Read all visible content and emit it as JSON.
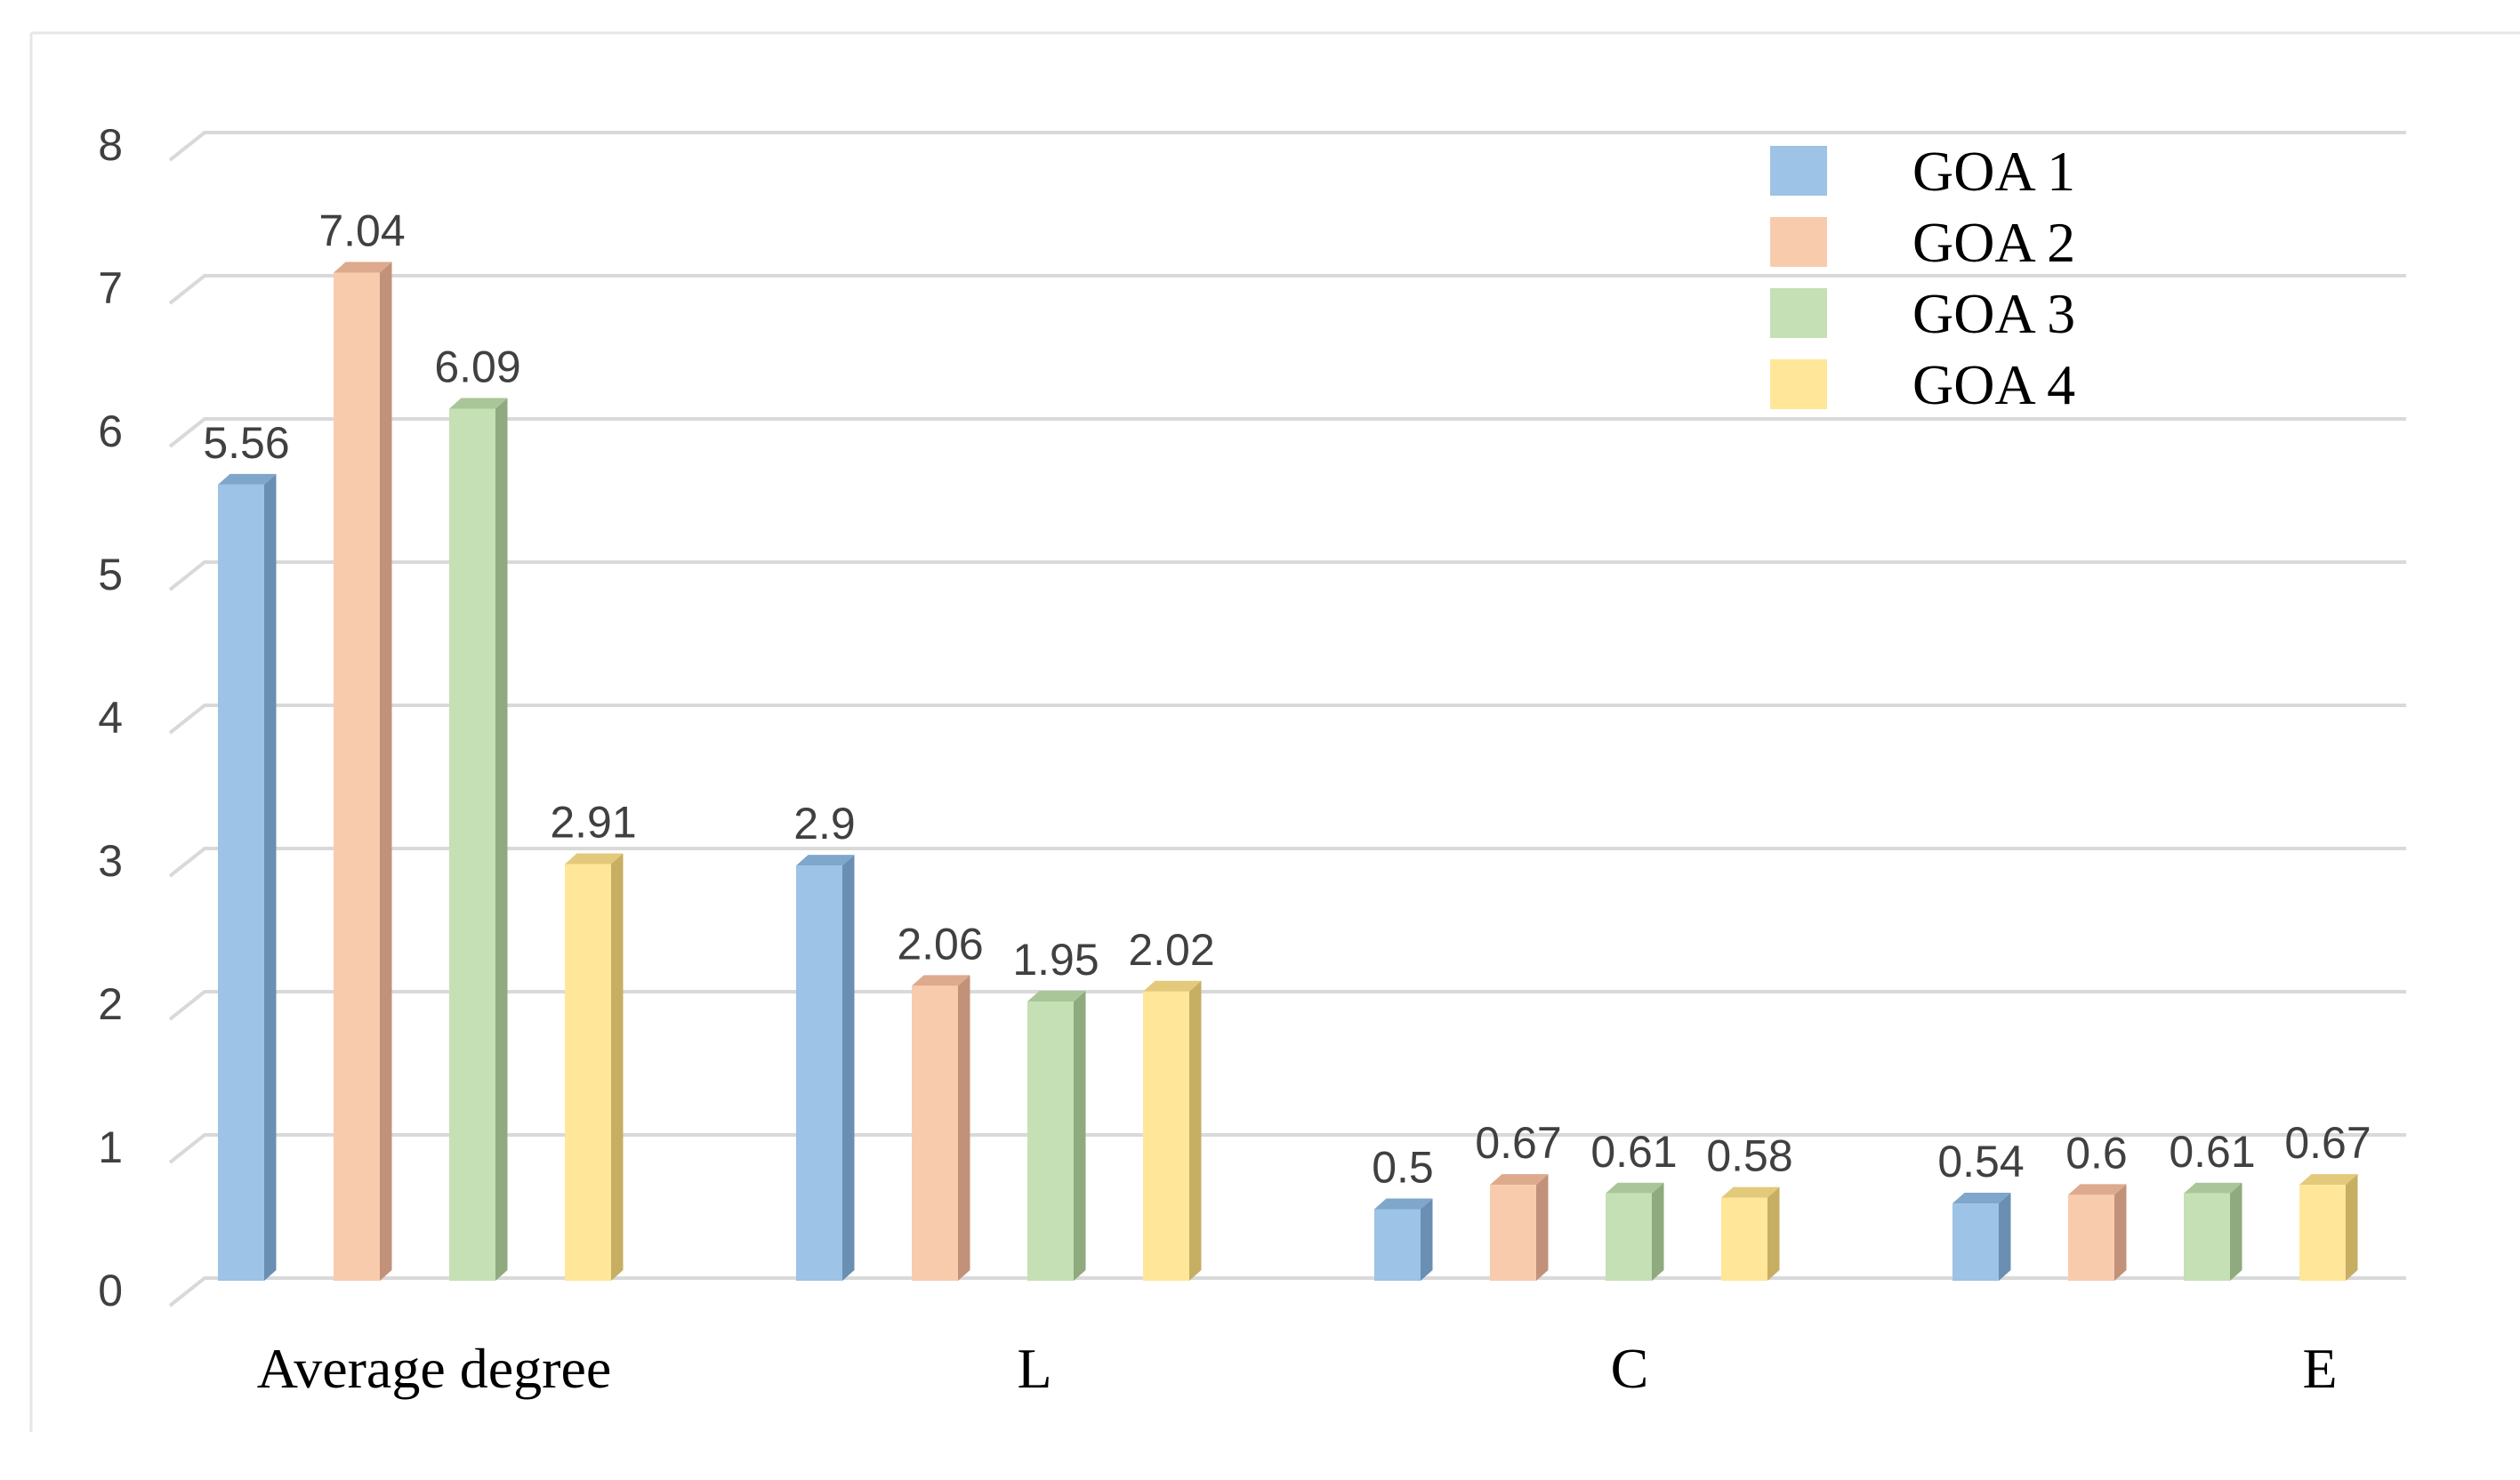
{
  "chart_data": {
    "type": "bar",
    "title": "",
    "xlabel": "",
    "ylabel": "",
    "ylim": [
      0,
      8
    ],
    "yticks": [
      "0",
      "1",
      "2",
      "3",
      "4",
      "5",
      "6",
      "7",
      "8"
    ],
    "grid": true,
    "legend_position": "top-right",
    "categories": [
      "Average degree",
      "L",
      "C",
      "E"
    ],
    "series": [
      {
        "name": "GOA 1",
        "color": "#9DC3E6",
        "side": "#6A8FB2",
        "top": "#7FA6CB",
        "values": [
          5.56,
          2.9,
          0.5,
          0.54
        ],
        "labels": [
          "5.56",
          "2.9",
          "0.5",
          "0.54"
        ]
      },
      {
        "name": "GOA 2",
        "color": "#F8CBAD",
        "side": "#C19279",
        "top": "#DDAA8D",
        "values": [
          7.04,
          2.06,
          0.67,
          0.6
        ],
        "labels": [
          "7.04",
          "2.06",
          "0.67",
          "0.6"
        ]
      },
      {
        "name": "GOA 3",
        "color": "#C5E0B4",
        "side": "#8FAA7E",
        "top": "#A9C698",
        "values": [
          6.09,
          1.95,
          0.61,
          0.61
        ],
        "labels": [
          "6.09",
          "1.95",
          "0.61",
          "0.61"
        ]
      },
      {
        "name": "GOA 4",
        "color": "#FFE699",
        "side": "#C6AE63",
        "top": "#E3C97A",
        "values": [
          2.91,
          2.02,
          0.58,
          0.67
        ],
        "labels": [
          "2.91",
          "2.02",
          "0.58",
          "0.67"
        ]
      }
    ]
  }
}
